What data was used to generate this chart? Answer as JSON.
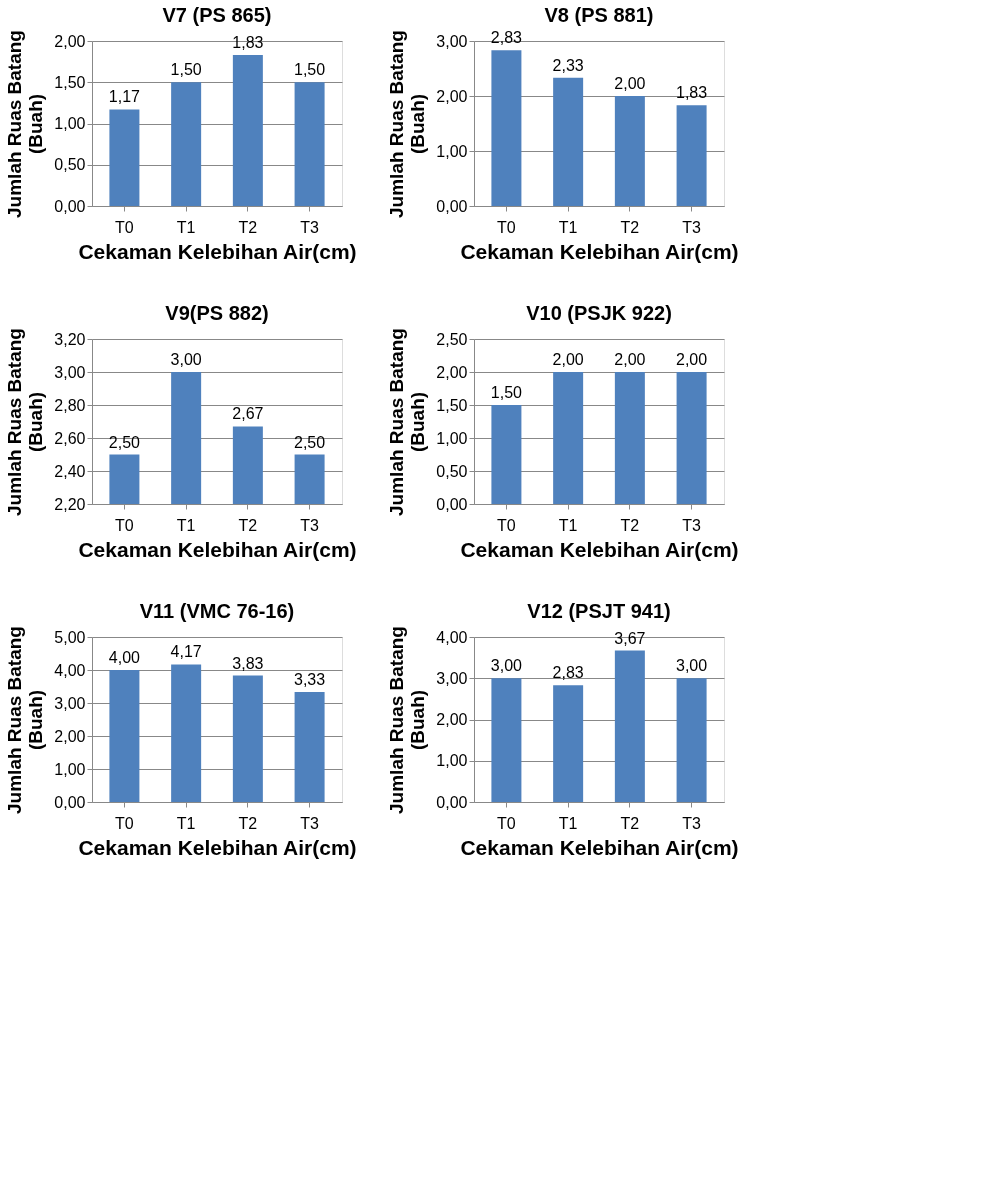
{
  "chart_data": [
    {
      "type": "bar",
      "title": "V7 (PS 865)",
      "xlabel": "Cekaman Kelebihan Air(cm)",
      "ylabel": "Jumlah Ruas Batang\n(Buah)",
      "categories": [
        "T0",
        "T1",
        "T2",
        "T3"
      ],
      "values": [
        1.17,
        1.5,
        1.83,
        1.5
      ],
      "value_labels": [
        "1,17",
        "1,50",
        "1,83",
        "1,50"
      ],
      "color": "#4f81bd",
      "ylim": [
        0,
        2
      ],
      "yticks": [
        {
          "value": 0,
          "label": "0,00"
        },
        {
          "value": 0.5,
          "label": "0,50"
        },
        {
          "value": 1,
          "label": "1,00"
        },
        {
          "value": 1.5,
          "label": "1,50"
        },
        {
          "value": 2,
          "label": "2,00"
        }
      ],
      "grid": "y"
    },
    {
      "type": "bar",
      "title": "V8 (PS 881)",
      "xlabel": "Cekaman Kelebihan Air(cm)",
      "ylabel": "Jumlah Ruas Batang\n(Buah)",
      "categories": [
        "T0",
        "T1",
        "T2",
        "T3"
      ],
      "values": [
        2.83,
        2.33,
        2.0,
        1.83
      ],
      "value_labels": [
        "2,83",
        "2,33",
        "2,00",
        "1,83"
      ],
      "color": "#4f81bd",
      "ylim": [
        0,
        3
      ],
      "yticks": [
        {
          "value": 0,
          "label": "0,00"
        },
        {
          "value": 1,
          "label": "1,00"
        },
        {
          "value": 2,
          "label": "2,00"
        },
        {
          "value": 3,
          "label": "3,00"
        }
      ],
      "grid": "y"
    },
    {
      "type": "bar",
      "title": "V9(PS 882)",
      "xlabel": "Cekaman Kelebihan Air(cm)",
      "ylabel": "Jumlah Ruas Batang\n(Buah)",
      "categories": [
        "T0",
        "T1",
        "T2",
        "T3"
      ],
      "values": [
        2.5,
        3.0,
        2.67,
        2.5
      ],
      "value_labels": [
        "2,50",
        "3,00",
        "2,67",
        "2,50"
      ],
      "color": "#4f81bd",
      "ylim": [
        2.2,
        3.2
      ],
      "yticks": [
        {
          "value": 2.2,
          "label": "2,20"
        },
        {
          "value": 2.4,
          "label": "2,40"
        },
        {
          "value": 2.6,
          "label": "2,60"
        },
        {
          "value": 2.8,
          "label": "2,80"
        },
        {
          "value": 3.0,
          "label": "3,00"
        },
        {
          "value": 3.2,
          "label": "3,20"
        }
      ],
      "grid": "y"
    },
    {
      "type": "bar",
      "title": "V10 (PSJK 922)",
      "xlabel": "Cekaman Kelebihan Air(cm)",
      "ylabel": "Jumlah Ruas Batang\n(Buah)",
      "categories": [
        "T0",
        "T1",
        "T2",
        "T3"
      ],
      "values": [
        1.5,
        2.0,
        2.0,
        2.0
      ],
      "value_labels": [
        "1,50",
        "2,00",
        "2,00",
        "2,00"
      ],
      "color": "#4f81bd",
      "ylim": [
        0,
        2.5
      ],
      "yticks": [
        {
          "value": 0,
          "label": "0,00"
        },
        {
          "value": 0.5,
          "label": "0,50"
        },
        {
          "value": 1,
          "label": "1,00"
        },
        {
          "value": 1.5,
          "label": "1,50"
        },
        {
          "value": 2,
          "label": "2,00"
        },
        {
          "value": 2.5,
          "label": "2,50"
        }
      ],
      "grid": "y"
    },
    {
      "type": "bar",
      "title": "V11 (VMC 76-16)",
      "xlabel": "Cekaman Kelebihan Air(cm)",
      "ylabel": "Jumlah Ruas Batang\n(Buah)",
      "categories": [
        "T0",
        "T1",
        "T2",
        "T3"
      ],
      "values": [
        4.0,
        4.17,
        3.83,
        3.33
      ],
      "value_labels": [
        "4,00",
        "4,17",
        "3,83",
        "3,33"
      ],
      "color": "#4f81bd",
      "ylim": [
        0,
        5
      ],
      "yticks": [
        {
          "value": 0,
          "label": "0,00"
        },
        {
          "value": 1,
          "label": "1,00"
        },
        {
          "value": 2,
          "label": "2,00"
        },
        {
          "value": 3,
          "label": "3,00"
        },
        {
          "value": 4,
          "label": "4,00"
        },
        {
          "value": 5,
          "label": "5,00"
        }
      ],
      "grid": "y"
    },
    {
      "type": "bar",
      "title": "V12 (PSJT 941)",
      "xlabel": "Cekaman Kelebihan Air(cm)",
      "ylabel": "Jumlah Ruas Batang\n(Buah)",
      "categories": [
        "T0",
        "T1",
        "T2",
        "T3"
      ],
      "values": [
        3.0,
        2.83,
        3.67,
        3.0
      ],
      "value_labels": [
        "3,00",
        "2,83",
        "3,67",
        "3,00"
      ],
      "color": "#4f81bd",
      "ylim": [
        0,
        4
      ],
      "yticks": [
        {
          "value": 0,
          "label": "0,00"
        },
        {
          "value": 1,
          "label": "1,00"
        },
        {
          "value": 2,
          "label": "2,00"
        },
        {
          "value": 3,
          "label": "3,00"
        },
        {
          "value": 4,
          "label": "4,00"
        }
      ],
      "grid": "y"
    }
  ]
}
